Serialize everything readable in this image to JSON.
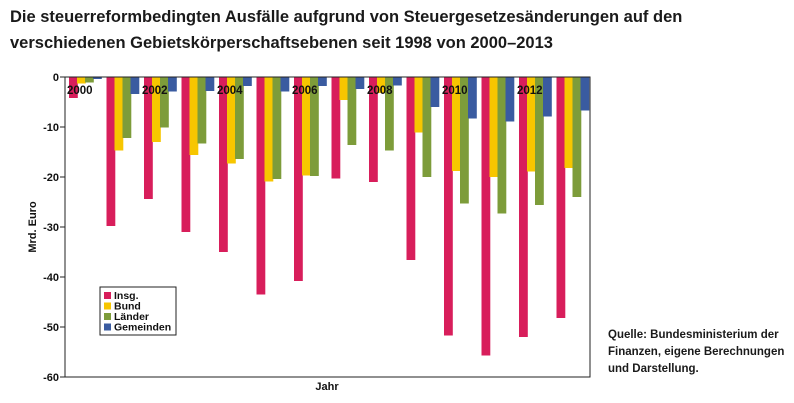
{
  "title": "Die steuerreformbedingten Ausfälle aufgrund von Steuergesetzesänderungen auf den verschiedenen Gebietskörperschaftsebenen seit 1998 von 2000–2013",
  "source": "Quelle: Bundesministerium der Finanzen, eigene Berechnungen und Darstellung.",
  "chart_data": {
    "type": "bar",
    "categories": [
      "2000",
      "2001",
      "2002",
      "2003",
      "2004",
      "2005",
      "2006",
      "2007",
      "2008",
      "2009",
      "2010",
      "2011",
      "2012",
      "2013"
    ],
    "category_labels": [
      "2000",
      "",
      "2002",
      "",
      "2004",
      "",
      "2006",
      "",
      "2008",
      "",
      "2010",
      "",
      "2012",
      ""
    ],
    "series": [
      {
        "name": "Insg.",
        "color": "#d81e5b",
        "values": [
          -4.2,
          -29.8,
          -24.4,
          -31.0,
          -35.0,
          -43.5,
          -40.8,
          -20.3,
          -21.0,
          -36.6,
          -51.7,
          -55.7,
          -52.0,
          -48.2
        ]
      },
      {
        "name": "Bund",
        "color": "#f7c600",
        "values": [
          -1.3,
          -14.7,
          -13.0,
          -15.6,
          -17.3,
          -20.9,
          -19.7,
          -4.6,
          -3.2,
          -11.1,
          -18.8,
          -20.0,
          -18.9,
          -18.2
        ]
      },
      {
        "name": "Länder",
        "color": "#7d9c3a",
        "values": [
          -1.1,
          -12.2,
          -10.1,
          -13.3,
          -16.4,
          -20.4,
          -19.8,
          -13.6,
          -14.7,
          -20.0,
          -25.3,
          -27.3,
          -25.6,
          -24.0
        ]
      },
      {
        "name": "Gemeinden",
        "color": "#3a5ba0",
        "values": [
          -0.4,
          -3.4,
          -2.9,
          -2.8,
          -1.8,
          -2.9,
          -1.8,
          -2.4,
          -1.7,
          -6.0,
          -8.3,
          -8.9,
          -7.9,
          -6.7
        ]
      }
    ],
    "ylabel": "Mrd. Euro",
    "xlabel": "Jahr",
    "ylim": [
      -60,
      0
    ],
    "yticks": [
      0,
      -10,
      -20,
      -30,
      -40,
      -50,
      -60
    ],
    "grid": false,
    "legend_position": "bottom-left"
  }
}
